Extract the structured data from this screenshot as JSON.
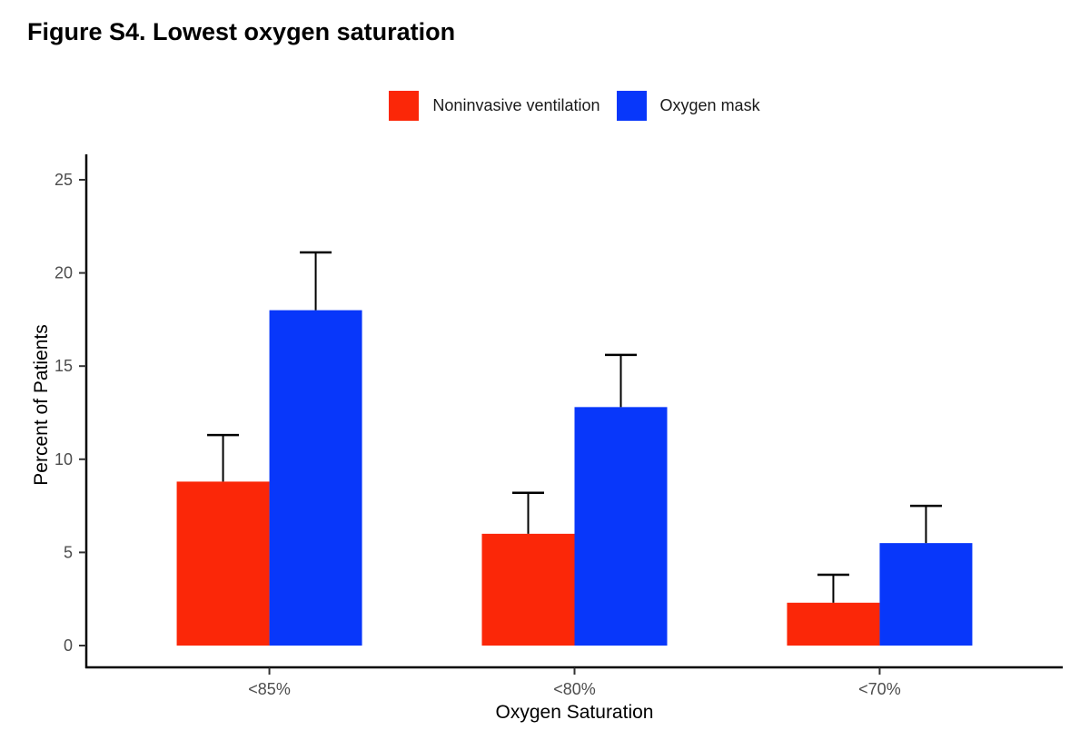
{
  "figure": {
    "title": "Figure S4. Lowest oxygen saturation"
  },
  "legend": {
    "items": [
      {
        "label": "Noninvasive ventilation",
        "color": "#FB2708"
      },
      {
        "label": "Oxygen mask",
        "color": "#0837FA"
      }
    ]
  },
  "chart_data": {
    "type": "bar",
    "grouped": true,
    "title": "Figure S4. Lowest oxygen saturation",
    "categories": [
      "<85%",
      "<80%",
      "<70%"
    ],
    "series": [
      {
        "name": "Noninvasive ventilation",
        "color": "#FB2708",
        "values": [
          8.8,
          6.0,
          2.3
        ],
        "error_upper": [
          11.3,
          8.2,
          3.8
        ]
      },
      {
        "name": "Oxygen mask",
        "color": "#0837FA",
        "values": [
          18.0,
          12.8,
          5.5
        ],
        "error_upper": [
          21.1,
          15.6,
          7.5
        ]
      }
    ],
    "xlabel": "Oxygen Saturation",
    "ylabel": "Percent of Patients",
    "ylim": [
      0,
      25
    ],
    "yticks": [
      0,
      5,
      10,
      15,
      20,
      25
    ],
    "grid": false,
    "legend_position": "top",
    "error_bars": true,
    "error_bar_color": "#000000",
    "axis_line_color": "#000000",
    "tick_label_color": "#4d4d4d",
    "axis_title_color": "#000000"
  }
}
